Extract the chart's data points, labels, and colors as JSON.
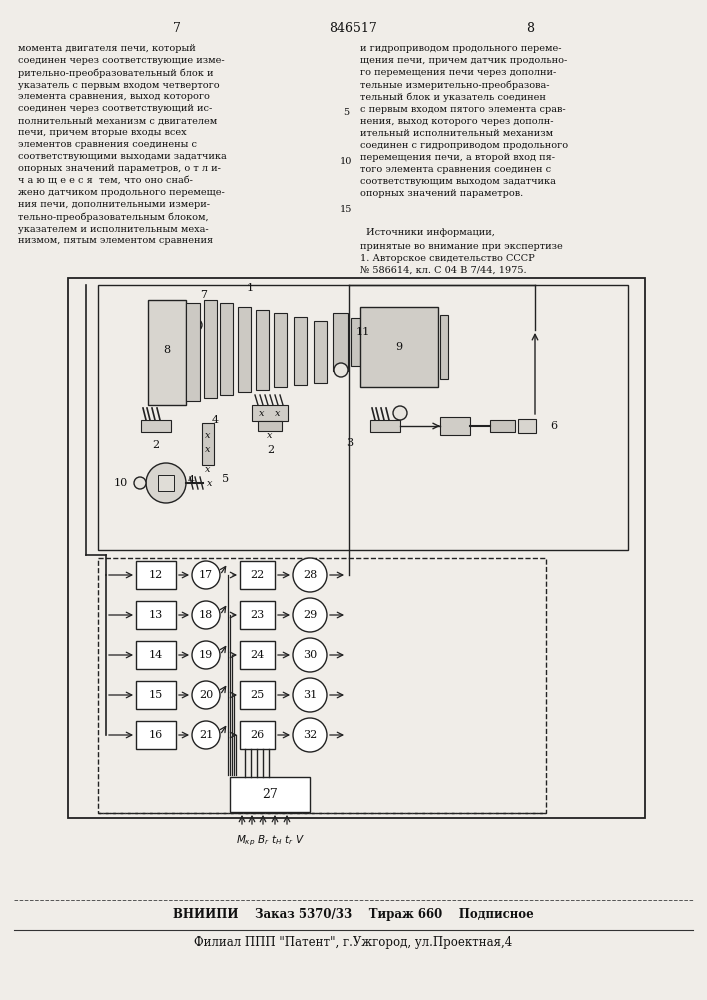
{
  "page_width": 7.07,
  "page_height": 10.0,
  "bg_color": "#f0ede8",
  "text_color": "#111111",
  "page_num_left": "7",
  "patent_num": "846517",
  "page_num_right": "8",
  "left_col_text": "момента двигателя печи, который\nсоединен через соответствующие изме-\nрительно-преобразовательный блок и\nуказатель с первым входом четвертого\nэлемента сравнения, выход которого\nсоединен через соответствующий ис-\nполнительный механизм с двигателем\nпечи, причем вторые входы всех\nэлементов сравнения соединены с\nсоответствующими выходами задатчика\nопорных значений параметров, о т л и-\nч а ю щ е е с я  тем, что оно снаб-\nжено датчиком продольного перемеще-\nния печи, дополнительными измери-\nтельно-преобразовательным блоком,\nуказателем и исполнительным меха-\nнизмом, пятым элементом сравнения",
  "right_col_text": "и гидроприводом продольного переме-\nщения печи, причем датчик продольно-\nго перемещения печи через дополни-\nтельные измерительно-преобразова-\nтельный блок и указатель соединен\nс первым входом пятого элемента срав-\nнения, выход которого через дополн-\nительный исполнительный механизм\nсоединен с гидроприводом продольного\nперемещения печи, а второй вход пя-\nтого элемента сравнения соединен с\nсоответствующим выходом задатчика\nопорных значений параметров.",
  "sources_title": "Источники информации,",
  "sources_text": "принятые во внимание при экспертизе\n1. Авторское свидетельство СССР\n№ 586614, кл. С 04 В 7/44, 1975.",
  "footer_line1": "ВНИИПИ    Заказ 5370/33    Тираж 660    Подписное",
  "footer_line2": "Филиал ППП \"Патент\", г.Ужгород, ул.Проектная,4"
}
